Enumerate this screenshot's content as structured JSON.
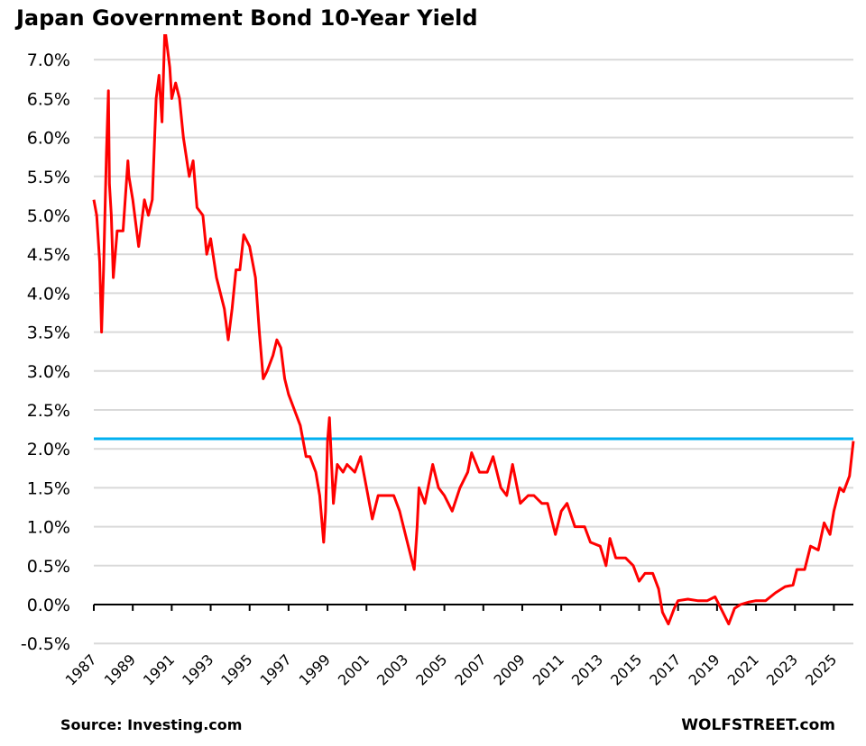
{
  "chart_data": {
    "type": "line",
    "title": "Japan Government Bond 10-Year Yield",
    "xlabel": "",
    "ylabel": "",
    "xlim": [
      1987,
      2026
    ],
    "ylim": [
      -0.5,
      7.33
    ],
    "grid": true,
    "y_ticks": [
      -0.5,
      0.0,
      0.5,
      1.0,
      1.5,
      2.0,
      2.5,
      3.0,
      3.5,
      4.0,
      4.5,
      5.0,
      5.5,
      6.0,
      6.5,
      7.0
    ],
    "y_tick_labels": [
      "-0.5%",
      "0.0%",
      "0.5%",
      "1.0%",
      "1.5%",
      "2.0%",
      "2.5%",
      "3.0%",
      "3.5%",
      "4.0%",
      "4.5%",
      "5.0%",
      "5.5%",
      "6.0%",
      "6.5%",
      "7.0%"
    ],
    "x_ticks": [
      1987,
      1989,
      1991,
      1993,
      1995,
      1997,
      1999,
      2001,
      2003,
      2005,
      2007,
      2009,
      2011,
      2013,
      2015,
      2017,
      2019,
      2021,
      2023,
      2025
    ],
    "x_tick_labels": [
      "1987",
      "1989",
      "1991",
      "1993",
      "1995",
      "1997",
      "1999",
      "2001",
      "2003",
      "2005",
      "2007",
      "2009",
      "2011",
      "2013",
      "2015",
      "2017",
      "2019",
      "2021",
      "2023",
      "2025"
    ],
    "reference_line": {
      "value": 2.13,
      "color": "#00b0f0"
    },
    "series": [
      {
        "name": "Japan 10-Year Yield",
        "color": "#ff0000",
        "x": [
          1987.0,
          1987.15,
          1987.3,
          1987.4,
          1987.5,
          1987.65,
          1987.75,
          1987.8,
          1987.9,
          1988.0,
          1988.2,
          1988.5,
          1988.75,
          1988.8,
          1989.0,
          1989.3,
          1989.6,
          1989.8,
          1990.0,
          1990.2,
          1990.35,
          1990.5,
          1990.65,
          1990.75,
          1990.9,
          1991.0,
          1991.2,
          1991.4,
          1991.6,
          1991.9,
          1992.1,
          1992.3,
          1992.6,
          1992.8,
          1993.0,
          1993.3,
          1993.7,
          1993.9,
          1994.1,
          1994.3,
          1994.5,
          1994.7,
          1995.0,
          1995.3,
          1995.5,
          1995.7,
          1995.9,
          1996.2,
          1996.4,
          1996.6,
          1996.8,
          1997.0,
          1997.3,
          1997.6,
          1997.9,
          1998.1,
          1998.4,
          1998.6,
          1998.8,
          1998.9,
          1999.0,
          1999.1,
          1999.3,
          1999.5,
          1999.8,
          2000.0,
          2000.4,
          2000.7,
          2001.0,
          2001.3,
          2001.6,
          2002.0,
          2002.4,
          2002.7,
          2003.0,
          2003.3,
          2003.45,
          2003.6,
          2003.7,
          2004.0,
          2004.4,
          2004.7,
          2005.0,
          2005.4,
          2005.8,
          2006.2,
          2006.4,
          2006.8,
          2007.2,
          2007.5,
          2007.9,
          2008.2,
          2008.5,
          2008.9,
          2009.3,
          2009.6,
          2010.0,
          2010.3,
          2010.7,
          2011.0,
          2011.3,
          2011.7,
          2012.2,
          2012.5,
          2013.0,
          2013.3,
          2013.5,
          2013.8,
          2014.3,
          2014.7,
          2015.0,
          2015.3,
          2015.7,
          2016.0,
          2016.2,
          2016.5,
          2016.8,
          2017.0,
          2017.5,
          2018.0,
          2018.5,
          2018.9,
          2019.2,
          2019.6,
          2019.9,
          2020.2,
          2020.6,
          2021.0,
          2021.5,
          2022.0,
          2022.5,
          2022.9,
          2023.1,
          2023.5,
          2023.8,
          2024.2,
          2024.5,
          2024.8,
          2025.0,
          2025.3,
          2025.5,
          2025.8,
          2026.0
        ],
        "y": [
          5.2,
          5.0,
          4.4,
          3.5,
          4.3,
          5.8,
          6.6,
          5.4,
          5.0,
          4.2,
          4.8,
          4.8,
          5.7,
          5.5,
          5.2,
          4.6,
          5.2,
          5.0,
          5.2,
          6.5,
          6.8,
          6.2,
          7.4,
          7.2,
          6.9,
          6.5,
          6.7,
          6.5,
          6.0,
          5.5,
          5.7,
          5.1,
          5.0,
          4.5,
          4.7,
          4.2,
          3.8,
          3.4,
          3.8,
          4.3,
          4.3,
          4.75,
          4.6,
          4.2,
          3.5,
          2.9,
          3.0,
          3.2,
          3.4,
          3.3,
          2.9,
          2.7,
          2.5,
          2.3,
          1.9,
          1.9,
          1.7,
          1.4,
          0.8,
          1.2,
          2.1,
          2.4,
          1.3,
          1.8,
          1.7,
          1.8,
          1.7,
          1.9,
          1.5,
          1.1,
          1.4,
          1.4,
          1.4,
          1.2,
          0.9,
          0.6,
          0.45,
          1.0,
          1.5,
          1.3,
          1.8,
          1.5,
          1.4,
          1.2,
          1.5,
          1.7,
          1.95,
          1.7,
          1.7,
          1.9,
          1.5,
          1.4,
          1.8,
          1.3,
          1.4,
          1.4,
          1.3,
          1.3,
          0.9,
          1.2,
          1.3,
          1.0,
          1.0,
          0.8,
          0.75,
          0.5,
          0.85,
          0.6,
          0.6,
          0.5,
          0.3,
          0.4,
          0.4,
          0.2,
          -0.1,
          -0.25,
          -0.05,
          0.05,
          0.07,
          0.05,
          0.05,
          0.1,
          -0.05,
          -0.25,
          -0.05,
          0.0,
          0.03,
          0.05,
          0.05,
          0.15,
          0.23,
          0.25,
          0.45,
          0.45,
          0.75,
          0.7,
          1.05,
          0.9,
          1.2,
          1.5,
          1.45,
          1.65,
          2.1
        ]
      }
    ]
  },
  "footer": {
    "source": "Source: Investing.com",
    "brand": "WOLFSTREET.com"
  }
}
